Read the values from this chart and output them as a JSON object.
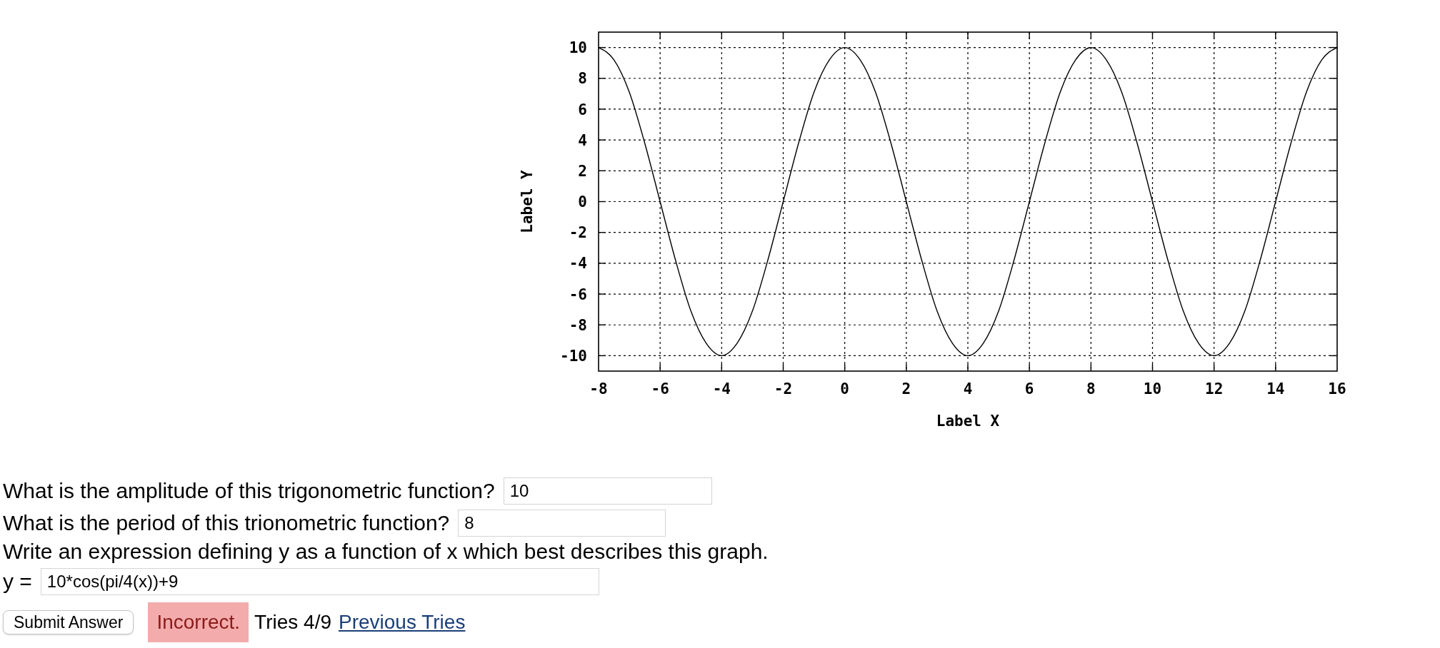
{
  "chart_data": {
    "type": "line",
    "xlabel": "Label X",
    "ylabel": "Label Y",
    "x": [
      -8,
      -7.5,
      -7,
      -6.5,
      -6,
      -5.5,
      -5,
      -4.5,
      -4,
      -3.5,
      -3,
      -2.5,
      -2,
      -1.5,
      -1,
      -0.5,
      0,
      0.5,
      1,
      1.5,
      2,
      2.5,
      3,
      3.5,
      4,
      4.5,
      5,
      5.5,
      6,
      6.5,
      7,
      7.5,
      8,
      8.5,
      9,
      9.5,
      10,
      10.5,
      11,
      11.5,
      12,
      12.5,
      13,
      13.5,
      14,
      14.5,
      15,
      15.5,
      16
    ],
    "values": [
      10,
      9.2,
      7.1,
      3.8,
      0,
      -3.8,
      -7.1,
      -9.2,
      -10,
      -9.2,
      -7.1,
      -3.8,
      0,
      3.8,
      7.1,
      9.2,
      10,
      9.2,
      7.1,
      3.8,
      0,
      -3.8,
      -7.1,
      -9.2,
      -10,
      -9.2,
      -7.1,
      -3.8,
      0,
      3.8,
      7.1,
      9.2,
      10,
      9.2,
      7.1,
      3.8,
      0,
      -3.8,
      -7.1,
      -9.2,
      -10,
      -9.2,
      -7.1,
      -3.8,
      0,
      3.8,
      7.1,
      9.2,
      10
    ],
    "color": "#000000",
    "xlim": [
      -8,
      16
    ],
    "ylim": [
      -11,
      11
    ],
    "xticks": [
      -8,
      -6,
      -4,
      -2,
      0,
      2,
      4,
      6,
      8,
      10,
      12,
      14,
      16
    ],
    "yticks": [
      -10,
      -8,
      -6,
      -4,
      -2,
      0,
      2,
      4,
      6,
      8,
      10
    ],
    "grid": true,
    "annotations": [
      "What is the amplitude of this trigonometric function?",
      "10",
      "What is the period of this trionometric function?",
      "8",
      "Write an expression defining y as a function of x which best describes this graph.",
      "y =",
      "10*cos(pi/4(x))+9",
      "Submit Answer",
      "Incorrect.",
      "Tries 4/9",
      "Previous Tries"
    ]
  }
}
